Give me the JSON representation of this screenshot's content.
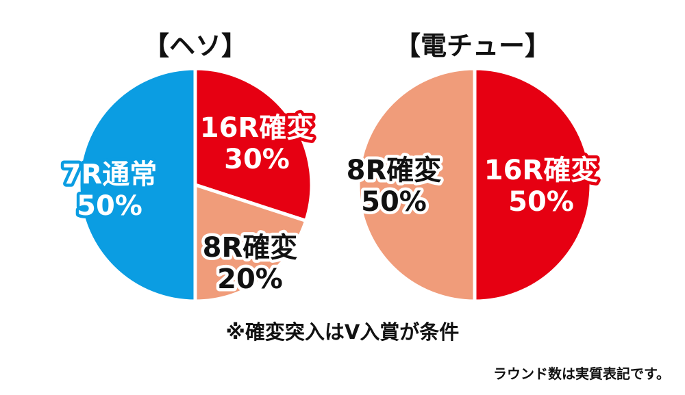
{
  "colors": {
    "red": "#e60012",
    "salmon": "#f09c7a",
    "blue": "#0b9de2",
    "separator": "#ffffff"
  },
  "chart_data": [
    {
      "type": "pie",
      "title": "【ヘソ】",
      "slices": [
        {
          "line1": "16R確変",
          "line2": "30%",
          "value": 30,
          "color": "#e60012",
          "label_color": "#ffffff",
          "label_stroke": "#e60012"
        },
        {
          "line1": "8R確変",
          "line2": "20%",
          "value": 20,
          "color": "#f09c7a",
          "label_color": "#111111",
          "label_stroke": "#ffffff"
        },
        {
          "line1": "7R通常",
          "line2": "50%",
          "value": 50,
          "color": "#0b9de2",
          "label_color": "#ffffff",
          "label_stroke": "#0b9de2"
        }
      ]
    },
    {
      "type": "pie",
      "title": "【電チュー】",
      "slices": [
        {
          "line1": "16R確変",
          "line2": "50%",
          "value": 50,
          "color": "#e60012",
          "label_color": "#ffffff",
          "label_stroke": "#e60012"
        },
        {
          "line1": "8R確変",
          "line2": "50%",
          "value": 50,
          "color": "#f09c7a",
          "label_color": "#111111",
          "label_stroke": "#ffffff"
        }
      ]
    }
  ],
  "footnote": "※確変突入はV入賞が条件",
  "source_note": "ラウンド数は実質表記です。"
}
